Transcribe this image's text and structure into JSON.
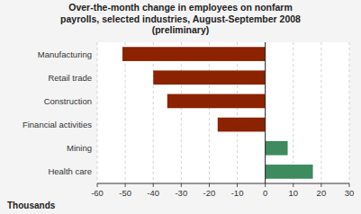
{
  "chart_data": {
    "type": "bar",
    "orientation": "horizontal",
    "title": "Over-the-month change in employees on nonfarm\npayrolls, selected industries, August-September 2008\n(preliminary)",
    "xlabel": "Thousands",
    "categories": [
      "Health care",
      "Mining",
      "Financial activities",
      "Construction",
      "Retail trade",
      "Manufacturing"
    ],
    "values": [
      17,
      8,
      -17,
      -35,
      -40,
      -51
    ],
    "colors": [
      "#3D8B5E",
      "#3D8B5E",
      "#8B2200",
      "#8B2200",
      "#8B2200",
      "#8B2200"
    ],
    "xlim": [
      -60,
      30
    ],
    "xticks": [
      -60,
      -50,
      -40,
      -30,
      -20,
      -10,
      0,
      10,
      20,
      30
    ],
    "grid": true
  }
}
